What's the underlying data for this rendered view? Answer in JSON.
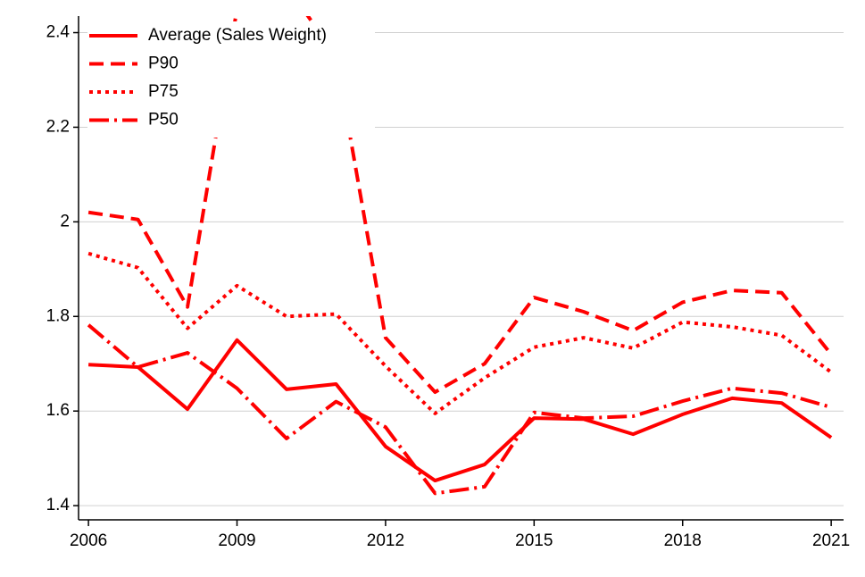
{
  "chart_data": {
    "type": "line",
    "x": [
      2006,
      2007,
      2008,
      2009,
      2010,
      2011,
      2012,
      2013,
      2014,
      2015,
      2016,
      2017,
      2018,
      2019,
      2020,
      2021
    ],
    "xlim": [
      2005.8,
      2021.25
    ],
    "xticks": [
      2006,
      2009,
      2012,
      2015,
      2018,
      2021
    ],
    "ylim": [
      1.37,
      2.435
    ],
    "yticks": [
      1.4,
      1.6,
      1.8,
      2,
      2.2,
      2.4
    ],
    "grid": true,
    "legend": "top-left",
    "series": [
      {
        "name": "Average (Sales Weight)",
        "color": "#ff0000",
        "dash": "solid",
        "values": [
          1.698,
          1.693,
          1.604,
          1.75,
          1.646,
          1.657,
          1.525,
          1.453,
          1.487,
          1.585,
          1.583,
          1.551,
          1.593,
          1.627,
          1.617,
          1.544
        ]
      },
      {
        "name": "P90",
        "color": "#ff0000",
        "dash": "dashed",
        "values": [
          2.02,
          2.005,
          1.82,
          2.45,
          2.5,
          2.35,
          1.755,
          1.64,
          1.7,
          1.84,
          1.81,
          1.77,
          1.83,
          1.855,
          1.85,
          1.72
        ]
      },
      {
        "name": "P75",
        "color": "#ff0000",
        "dash": "dotted",
        "values": [
          1.933,
          1.903,
          1.775,
          1.865,
          1.8,
          1.805,
          1.695,
          1.595,
          1.67,
          1.735,
          1.755,
          1.733,
          1.788,
          1.778,
          1.76,
          1.682
        ]
      },
      {
        "name": "P50",
        "color": "#ff0000",
        "dash": "dashdot",
        "values": [
          1.782,
          1.693,
          1.723,
          1.648,
          1.542,
          1.62,
          1.566,
          1.426,
          1.44,
          1.597,
          1.585,
          1.589,
          1.621,
          1.648,
          1.638,
          1.608
        ]
      }
    ]
  }
}
